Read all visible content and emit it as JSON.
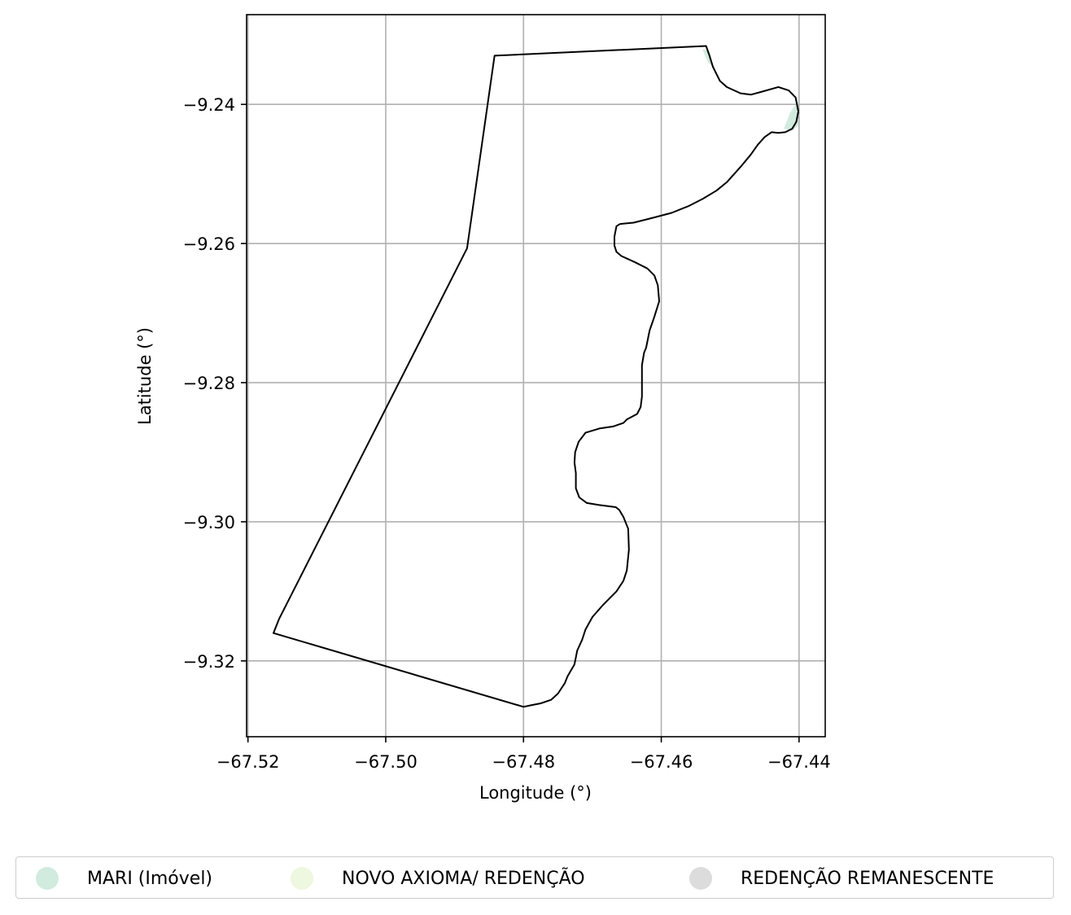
{
  "map": {
    "xlabel": "Longitude (°)",
    "ylabel": "Latitude (°)",
    "xlim": [
      -67.5202,
      -67.4362
    ],
    "ylim": [
      -9.3309,
      -9.2271
    ],
    "x_ticks": [
      {
        "value": -67.52,
        "label": "−67.52"
      },
      {
        "value": -67.5,
        "label": "−67.50"
      },
      {
        "value": -67.48,
        "label": "−67.48"
      },
      {
        "value": -67.46,
        "label": "−67.46"
      },
      {
        "value": -67.44,
        "label": "−67.44"
      }
    ],
    "y_ticks": [
      {
        "value": -9.24,
        "label": "−9.24"
      },
      {
        "value": -9.26,
        "label": "−9.26"
      },
      {
        "value": -9.28,
        "label": "−9.28"
      },
      {
        "value": -9.3,
        "label": "−9.30"
      },
      {
        "value": -9.32,
        "label": "−9.32"
      }
    ],
    "grid": true,
    "outline_color": "#000000",
    "boundary": [
      [
        -67.4842,
        -9.233
      ],
      [
        -67.4535,
        -9.2316
      ],
      [
        -67.453,
        -9.233
      ],
      [
        -67.4525,
        -9.2346
      ],
      [
        -67.4515,
        -9.2366
      ],
      [
        -67.4505,
        -9.2375
      ],
      [
        -67.4485,
        -9.2384
      ],
      [
        -67.447,
        -9.2386
      ],
      [
        -67.4455,
        -9.2382
      ],
      [
        -67.443,
        -9.2375
      ],
      [
        -67.4415,
        -9.238
      ],
      [
        -67.4405,
        -9.239
      ],
      [
        -67.4401,
        -9.241
      ],
      [
        -67.4404,
        -9.2425
      ],
      [
        -67.441,
        -9.2435
      ],
      [
        -67.442,
        -9.244
      ],
      [
        -67.443,
        -9.2441
      ],
      [
        -67.444,
        -9.244
      ],
      [
        -67.445,
        -9.2447
      ],
      [
        -67.446,
        -9.2458
      ],
      [
        -67.447,
        -9.2472
      ],
      [
        -67.4485,
        -9.249
      ],
      [
        -67.4505,
        -9.2512
      ],
      [
        -67.452,
        -9.2524
      ],
      [
        -67.454,
        -9.2536
      ],
      [
        -67.456,
        -9.2546
      ],
      [
        -67.4585,
        -9.2556
      ],
      [
        -67.4612,
        -9.2563
      ],
      [
        -67.464,
        -9.257
      ],
      [
        -67.466,
        -9.2572
      ],
      [
        -67.4665,
        -9.2575
      ],
      [
        -67.4668,
        -9.259
      ],
      [
        -67.4668,
        -9.2603
      ],
      [
        -67.4665,
        -9.2612
      ],
      [
        -67.4658,
        -9.2618
      ],
      [
        -67.4638,
        -9.2627
      ],
      [
        -67.462,
        -9.2636
      ],
      [
        -67.461,
        -9.2646
      ],
      [
        -67.4605,
        -9.266
      ],
      [
        -67.4603,
        -9.2683
      ],
      [
        -67.461,
        -9.2705
      ],
      [
        -67.4617,
        -9.2725
      ],
      [
        -67.4622,
        -9.275
      ],
      [
        -67.4625,
        -9.2757
      ],
      [
        -67.4628,
        -9.2775
      ],
      [
        -67.4628,
        -9.282
      ],
      [
        -67.463,
        -9.2835
      ],
      [
        -67.4635,
        -9.2845
      ],
      [
        -67.465,
        -9.2853
      ],
      [
        -67.4655,
        -9.2858
      ],
      [
        -67.467,
        -9.2863
      ],
      [
        -67.469,
        -9.2866
      ],
      [
        -67.471,
        -9.2872
      ],
      [
        -67.472,
        -9.2885
      ],
      [
        -67.4725,
        -9.29
      ],
      [
        -67.4726,
        -9.2915
      ],
      [
        -67.4724,
        -9.293
      ],
      [
        -67.4724,
        -9.2952
      ],
      [
        -67.4719,
        -9.2965
      ],
      [
        -67.4708,
        -9.2973
      ],
      [
        -67.469,
        -9.2976
      ],
      [
        -67.4666,
        -9.2979
      ],
      [
        -67.4661,
        -9.2983
      ],
      [
        -67.4655,
        -9.2993
      ],
      [
        -67.4648,
        -9.301
      ],
      [
        -67.4647,
        -9.304
      ],
      [
        -67.465,
        -9.307
      ],
      [
        -67.4655,
        -9.3085
      ],
      [
        -67.4665,
        -9.31
      ],
      [
        -67.4685,
        -9.312
      ],
      [
        -67.47,
        -9.3137
      ],
      [
        -67.471,
        -9.3155
      ],
      [
        -67.4715,
        -9.317
      ],
      [
        -67.4722,
        -9.3185
      ],
      [
        -67.4726,
        -9.3205
      ],
      [
        -67.4736,
        -9.3222
      ],
      [
        -67.474,
        -9.3232
      ],
      [
        -67.475,
        -9.3247
      ],
      [
        -67.476,
        -9.3256
      ],
      [
        -67.4775,
        -9.3261
      ],
      [
        -67.479,
        -9.3264
      ],
      [
        -67.48,
        -9.3266
      ],
      [
        -67.5163,
        -9.316
      ],
      [
        -67.5155,
        -9.314
      ],
      [
        -67.4882,
        -9.2607
      ],
      [
        -67.4842,
        -9.233
      ]
    ],
    "polygons": [
      {
        "name": "MARI (Imóvel)",
        "color": "#d1ebdf",
        "points": [
          [
            -67.454,
            -9.2321
          ],
          [
            -67.453,
            -9.2323
          ],
          [
            -67.4525,
            -9.2345
          ],
          [
            -67.4532,
            -9.234
          ]
        ]
      },
      {
        "name": "MARI (Imóvel)",
        "color": "#d1ebdf",
        "points": [
          [
            -67.4401,
            -9.2395
          ],
          [
            -67.4401,
            -9.243
          ],
          [
            -67.441,
            -9.2438
          ],
          [
            -67.4422,
            -9.2435
          ],
          [
            -67.4413,
            -9.2412
          ]
        ]
      }
    ],
    "legend": [
      {
        "label": "MARI (Imóvel)",
        "color": "#d1ebdf"
      },
      {
        "label": "NOVO AXIOMA/ REDENÇÃO",
        "color": "#eef7df"
      },
      {
        "label": "REDENÇÃO REMANESCENTE",
        "color": "#dcdcdc"
      }
    ]
  }
}
